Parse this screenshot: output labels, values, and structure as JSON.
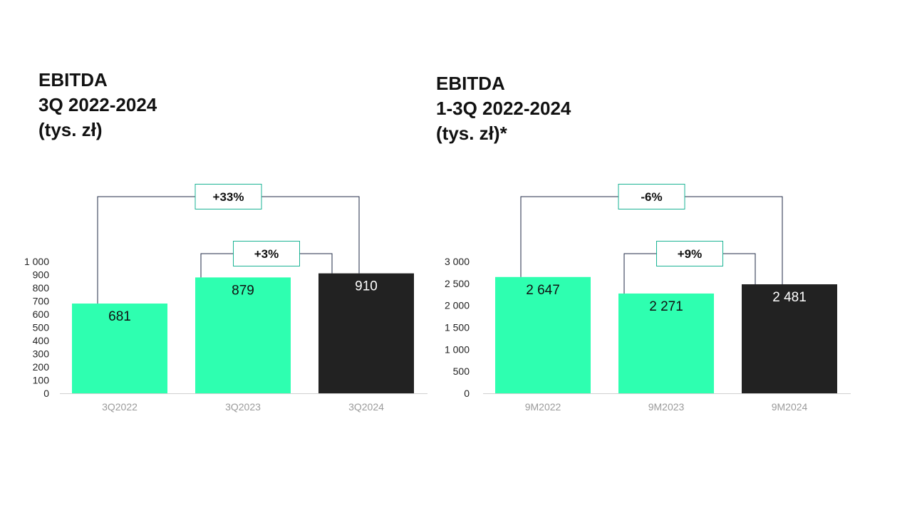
{
  "colors": {
    "highlight": "#2effb0",
    "current": "#222222",
    "connector": "#1f2a44",
    "badge_border": "#1ab394",
    "axis": "#d0d0d0"
  },
  "chart_data": [
    {
      "type": "bar",
      "title_lines": [
        "EBITDA",
        "3Q 2022-2024",
        "(tys. zł)"
      ],
      "categories": [
        "3Q2022",
        "3Q2023",
        "3Q2024"
      ],
      "values": [
        681,
        879,
        910
      ],
      "value_labels": [
        "681",
        "879",
        "910"
      ],
      "bar_colors": [
        "#2effb0",
        "#2effb0",
        "#222222"
      ],
      "label_colors": [
        "#111111",
        "#111111",
        "#ffffff"
      ],
      "ylim": [
        0,
        1000
      ],
      "yticks": [
        0,
        100,
        200,
        300,
        400,
        500,
        600,
        700,
        800,
        900,
        1000
      ],
      "ytick_labels": [
        "0",
        "100",
        "200",
        "300",
        "400",
        "500",
        "600",
        "700",
        "800",
        "900",
        "1 000"
      ],
      "comparisons": [
        {
          "from": 0,
          "to": 2,
          "label": "+33%"
        },
        {
          "from": 1,
          "to": 2,
          "label": "+3%"
        }
      ]
    },
    {
      "type": "bar",
      "title_lines": [
        "EBITDA",
        "1-3Q 2022-2024",
        "(tys. zł)*"
      ],
      "categories": [
        "9M2022",
        "9M2023",
        "9M2024"
      ],
      "values": [
        2647,
        2271,
        2481
      ],
      "value_labels": [
        "2 647",
        "2 271",
        "2 481"
      ],
      "bar_colors": [
        "#2effb0",
        "#2effb0",
        "#222222"
      ],
      "label_colors": [
        "#111111",
        "#111111",
        "#ffffff"
      ],
      "ylim": [
        0,
        3000
      ],
      "yticks": [
        0,
        500,
        1000,
        1500,
        2000,
        2500,
        3000
      ],
      "ytick_labels": [
        "0",
        "500",
        "1 000",
        "1 500",
        "2 000",
        "2 500",
        "3 000"
      ],
      "comparisons": [
        {
          "from": 0,
          "to": 2,
          "label": "-6%"
        },
        {
          "from": 1,
          "to": 2,
          "label": "+9%"
        }
      ]
    }
  ]
}
